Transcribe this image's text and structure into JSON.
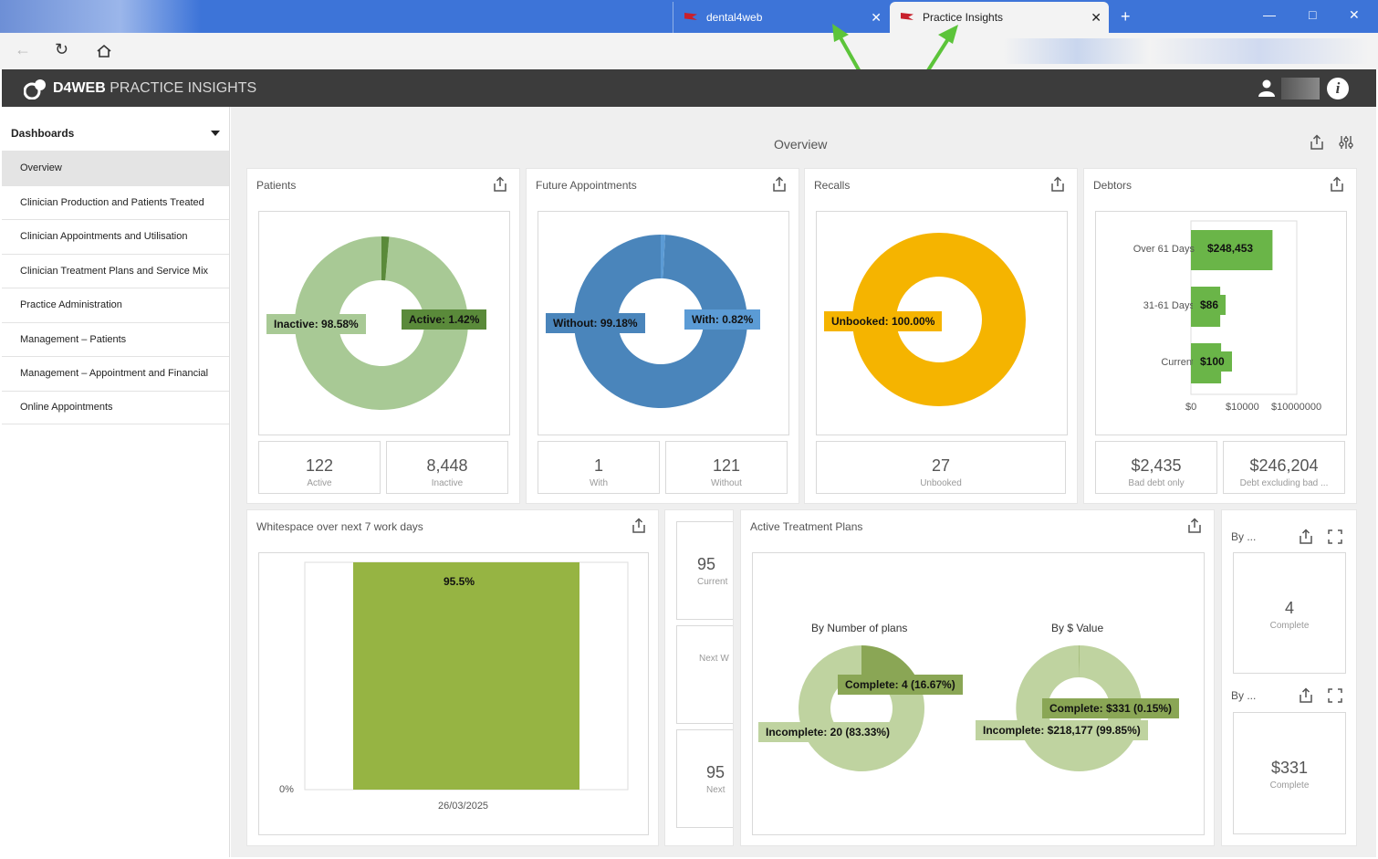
{
  "browser": {
    "tabs": [
      {
        "label": "dental4web"
      },
      {
        "label": "Practice Insights"
      }
    ],
    "new_tab": "+",
    "close": "✕"
  },
  "app": {
    "brand": "D4WEB",
    "title": "PRACTICE INSIGHTS",
    "info": "i"
  },
  "sidebar": {
    "heading": "Dashboards",
    "items": [
      {
        "label": "Overview"
      },
      {
        "label": "Clinician Production and Patients Treated"
      },
      {
        "label": "Clinician Appointments and Utilisation"
      },
      {
        "label": "Clinician Treatment Plans and Service Mix"
      },
      {
        "label": "Practice Administration"
      },
      {
        "label": "Management – Patients"
      },
      {
        "label": "Management – Appointment and Financial"
      },
      {
        "label": "Online Appointments"
      }
    ]
  },
  "main": {
    "title": "Overview",
    "patients": {
      "title": "Patients",
      "kpis": [
        {
          "value": "122",
          "label": "Active"
        },
        {
          "value": "8,448",
          "label": "Inactive"
        }
      ]
    },
    "appointments": {
      "title": "Future Appointments",
      "kpis": [
        {
          "value": "1",
          "label": "With"
        },
        {
          "value": "121",
          "label": "Without"
        }
      ]
    },
    "recalls": {
      "title": "Recalls",
      "kpis": [
        {
          "value": "27",
          "label": "Unbooked"
        }
      ]
    },
    "debtors": {
      "title": "Debtors",
      "kpis": [
        {
          "value": "$2,435",
          "label": "Bad debt only"
        },
        {
          "value": "$246,204",
          "label": "Debt excluding bad ..."
        }
      ]
    },
    "whitespace": {
      "title": "Whitespace over next 7 work days"
    },
    "partial_cards": [
      {
        "value": "95",
        "label": "Current"
      },
      {
        "value": "",
        "label": "Next W"
      },
      {
        "value": "95",
        "label": "Next"
      }
    ],
    "treatment": {
      "title": "Active Treatment Plans"
    },
    "side_kpis": [
      {
        "title": "By ...",
        "value": "4",
        "label": "Complete"
      },
      {
        "title": "By ...",
        "value": "$331",
        "label": "Complete"
      }
    ]
  },
  "chart_data": [
    {
      "type": "pie",
      "title": "Patients",
      "labels": [
        "Inactive",
        "Active"
      ],
      "values": [
        98.58,
        1.42
      ],
      "data_labels": [
        "Inactive: 98.58%",
        "Active: 1.42%"
      ],
      "colors": [
        "#a8c995",
        "#5a8a3a"
      ]
    },
    {
      "type": "pie",
      "title": "Future Appointments",
      "labels": [
        "Without",
        "With"
      ],
      "values": [
        99.18,
        0.82
      ],
      "data_labels": [
        "Without: 99.18%",
        "With: 0.82%"
      ],
      "colors": [
        "#4a85bb",
        "#5b9bd5"
      ]
    },
    {
      "type": "pie",
      "title": "Recalls",
      "labels": [
        "Unbooked"
      ],
      "values": [
        100.0
      ],
      "data_labels": [
        "Unbooked: 100.00%"
      ],
      "colors": [
        "#f5b400"
      ]
    },
    {
      "type": "bar",
      "title": "Debtors",
      "orientation": "horizontal",
      "x_scale": "log",
      "categories": [
        "Over 61 Days",
        "31-61 Days",
        "Current"
      ],
      "values": [
        248453,
        86,
        100
      ],
      "data_labels": [
        "$248,453",
        "$86",
        "$100"
      ],
      "x_ticks": [
        "$0",
        "$10000",
        "$10000000"
      ],
      "color": "#6ab548"
    },
    {
      "type": "bar",
      "title": "Whitespace over next 7 work days",
      "categories": [
        "26/03/2025"
      ],
      "values": [
        95.5
      ],
      "data_labels": [
        "95.5%"
      ],
      "y_ticks": [
        "0%"
      ],
      "color": "#96b443"
    },
    {
      "type": "pie",
      "title": "By Number of plans",
      "labels": [
        "Complete",
        "Incomplete"
      ],
      "values": [
        16.67,
        83.33
      ],
      "data_labels": [
        "Complete: 4 (16.67%)",
        "Incomplete: 20 (83.33%)"
      ],
      "colors": [
        "#8aa655",
        "#bfd3a0"
      ]
    },
    {
      "type": "pie",
      "title": "By $ Value",
      "labels": [
        "Complete",
        "Incomplete"
      ],
      "values": [
        0.15,
        99.85
      ],
      "data_labels": [
        "Complete: $331 (0.15%)",
        "Incomplete: $218,177 (99.85%)"
      ],
      "colors": [
        "#8aa655",
        "#bfd3a0"
      ]
    }
  ]
}
